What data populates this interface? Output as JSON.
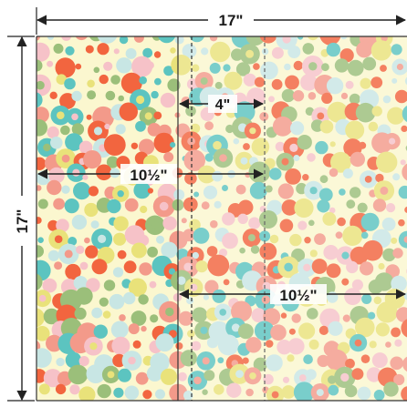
{
  "diagram": {
    "labels": {
      "top_width": "17\"",
      "left_height": "17\"",
      "small_overlap": "4\"",
      "upper_width": "10½\"",
      "lower_width": "10½\""
    },
    "fabric": {
      "background": "#fbf7cf",
      "dot_colors": [
        "#f2653f",
        "#f39a8a",
        "#5cc4c0",
        "#9bbf7a",
        "#e9e27a",
        "#f6c2c8",
        "#c8e6e4"
      ]
    },
    "line_color": "#222222"
  }
}
